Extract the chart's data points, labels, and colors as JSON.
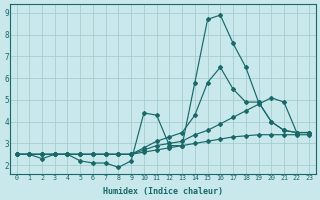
{
  "xlabel": "Humidex (Indice chaleur)",
  "bg_color": "#c8e8ec",
  "grid_color": "#a0c8cc",
  "line_color": "#1a6868",
  "xlim_min": -0.5,
  "xlim_max": 23.5,
  "ylim_min": 1.6,
  "ylim_max": 9.4,
  "hours": [
    0,
    1,
    2,
    3,
    4,
    5,
    6,
    7,
    8,
    9,
    10,
    11,
    12,
    13,
    14,
    15,
    16,
    17,
    18,
    19,
    20,
    21,
    22,
    23
  ],
  "line1": [
    2.5,
    2.5,
    2.3,
    2.5,
    2.5,
    2.2,
    2.1,
    2.1,
    1.9,
    2.2,
    4.4,
    4.3,
    2.9,
    2.9,
    5.8,
    8.7,
    8.9,
    7.6,
    6.5,
    4.9,
    4.0,
    3.6,
    3.5,
    3.5
  ],
  "line2": [
    2.5,
    2.5,
    2.5,
    2.5,
    2.5,
    2.5,
    2.5,
    2.5,
    2.5,
    2.5,
    2.8,
    3.1,
    3.3,
    3.5,
    4.3,
    5.8,
    6.5,
    5.5,
    4.9,
    4.9,
    4.0,
    3.6,
    3.5,
    3.5
  ],
  "line3": [
    2.5,
    2.5,
    2.5,
    2.5,
    2.5,
    2.5,
    2.5,
    2.5,
    2.5,
    2.5,
    2.7,
    2.9,
    3.0,
    3.1,
    3.4,
    3.6,
    3.9,
    4.2,
    4.5,
    4.8,
    5.1,
    4.9,
    3.5,
    3.5
  ],
  "line4": [
    2.5,
    2.5,
    2.5,
    2.5,
    2.5,
    2.5,
    2.5,
    2.5,
    2.5,
    2.5,
    2.6,
    2.7,
    2.8,
    2.9,
    3.0,
    3.1,
    3.2,
    3.3,
    3.35,
    3.4,
    3.4,
    3.4,
    3.4,
    3.4
  ],
  "yticks": [
    2,
    3,
    4,
    5,
    6,
    7,
    8,
    9
  ],
  "xticks": [
    0,
    1,
    2,
    3,
    4,
    5,
    6,
    7,
    8,
    9,
    10,
    11,
    12,
    13,
    14,
    15,
    16,
    17,
    18,
    19,
    20,
    21,
    22,
    23
  ]
}
